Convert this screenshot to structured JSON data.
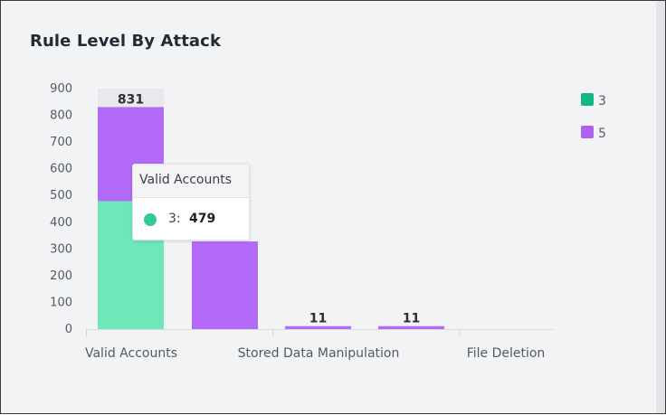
{
  "chart_data": {
    "type": "bar",
    "title": "Rule Level By Attack",
    "stacked": true,
    "categories": [
      "Valid Accounts",
      "Stored Data Manipulation",
      "File Deletion"
    ],
    "x_tick_labels": [
      "Valid Accounts",
      "Stored Data Manipulation",
      "File Deletion"
    ],
    "y_ticks": [
      0,
      100,
      200,
      300,
      400,
      500,
      600,
      700,
      800,
      900
    ],
    "ylim": [
      0,
      900
    ],
    "bars": [
      {
        "category": "Valid Accounts",
        "segments": [
          {
            "series": "3",
            "value": 479
          },
          {
            "series": "5",
            "value": 352
          }
        ],
        "total": 831
      },
      {
        "category": "",
        "segments": [
          {
            "series": "5",
            "value": 328
          }
        ],
        "total": 328
      },
      {
        "category": "Stored Data Manipulation",
        "segments": [
          {
            "series": "5",
            "value": 11
          }
        ],
        "total": 11
      },
      {
        "category": "",
        "segments": [
          {
            "series": "5",
            "value": 11
          }
        ],
        "total": 11
      },
      {
        "category": "File Deletion",
        "segments": [],
        "total": null
      }
    ],
    "series": [
      {
        "name": "3",
        "color": "#11b886",
        "bar_color": "#6ee8b9"
      },
      {
        "name": "5",
        "color": "#ae62ef",
        "bar_color": "#b36af8"
      }
    ],
    "legend_position": "top-right",
    "grid": false
  },
  "tooltip": {
    "title": "Valid Accounts",
    "series_label": "3:",
    "value": "479",
    "dot_color": "#37c994"
  }
}
